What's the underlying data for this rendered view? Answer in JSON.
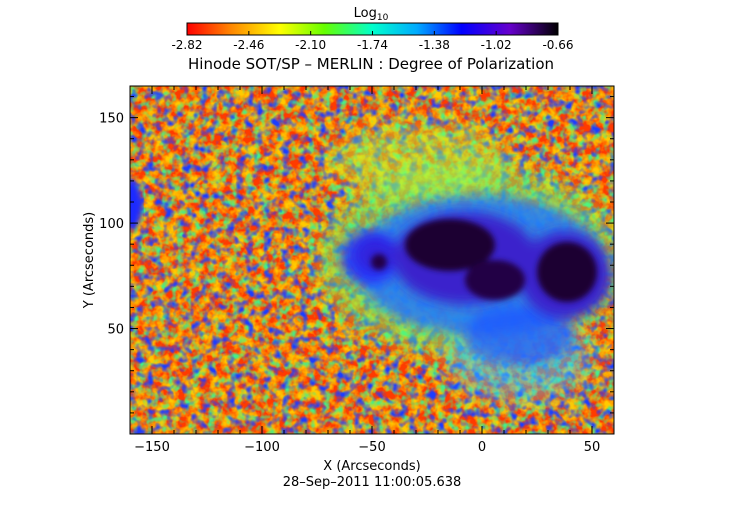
{
  "colorbar": {
    "label_base": "Log",
    "label_sub": "10",
    "tick_labels": [
      "-2.82",
      "-2.46",
      "-2.10",
      "-1.74",
      "-1.38",
      "-1.02",
      "-0.66"
    ],
    "range": [
      -2.82,
      -0.66
    ],
    "colormap": [
      "#ff0000",
      "#ff8800",
      "#ffff00",
      "#66ff00",
      "#00ffcc",
      "#00aaff",
      "#0000ff",
      "#6600cc",
      "#000000"
    ]
  },
  "chart_data": {
    "type": "heatmap",
    "title": "Hinode SOT/SP – MERLIN : Degree of Polarization",
    "xlabel": "X (Arcseconds)",
    "ylabel": "Y (Arcseconds)",
    "xlim": [
      -160,
      60
    ],
    "ylim": [
      0,
      165
    ],
    "x_ticks": [
      -150,
      -100,
      -50,
      0,
      50
    ],
    "y_ticks": [
      50,
      100,
      150
    ],
    "x_tick_labels": [
      "−150",
      "−100",
      "−50",
      "0",
      "50"
    ],
    "y_tick_labels": [
      "50",
      "100",
      "150"
    ]
  },
  "timestamp": "28–Sep–2011 11:00:05.638"
}
